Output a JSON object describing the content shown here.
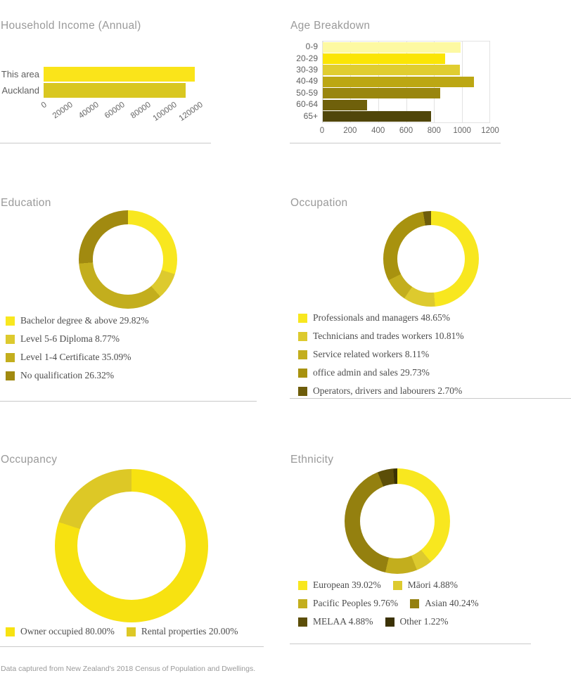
{
  "report": {
    "footer_note": "Data captured from New Zealand's 2018 Census of Population and Dwellings."
  },
  "chart_data": [
    {
      "id": "income",
      "type": "bar",
      "orientation": "horizontal",
      "title": "Household Income (Annual)",
      "categories": [
        "This area",
        "Auckland"
      ],
      "values": [
        116000,
        109000
      ],
      "colors": [
        "#FAE41A",
        "#D9C720"
      ],
      "xmax": 120000,
      "xticks": [
        "0",
        "20000",
        "40000",
        "60000",
        "80000",
        "100000",
        "120000"
      ],
      "tick_rotation": -35,
      "grid": false
    },
    {
      "id": "age",
      "type": "bar",
      "orientation": "horizontal",
      "title": "Age Breakdown",
      "categories": [
        "0-9",
        "20-29",
        "30-39",
        "40-49",
        "50-59",
        "60-64",
        "65+"
      ],
      "values": [
        990,
        880,
        985,
        1090,
        845,
        320,
        780
      ],
      "colors": [
        "#FDF9A2",
        "#FBE505",
        "#E0CD30",
        "#BCA713",
        "#99860E",
        "#6F600B",
        "#50460A"
      ],
      "xmax": 1200,
      "xticks": [
        "0",
        "200",
        "400",
        "600",
        "800",
        "1000",
        "1200"
      ],
      "tick_rotation": 0,
      "grid": true
    },
    {
      "id": "education",
      "type": "donut",
      "title": "Education",
      "segments": [
        {
          "label": "Bachelor degree & above",
          "pct": 29.82,
          "pct_text": "29.82%",
          "color": "#F8E71F"
        },
        {
          "label": "Level 5-6 Diploma",
          "pct": 8.77,
          "pct_text": "8.77%",
          "color": "#DDCA2E"
        },
        {
          "label": "Level 1-4 Certificate",
          "pct": 35.09,
          "pct_text": "35.09%",
          "color": "#C3AE1D"
        },
        {
          "label": "No qualification",
          "pct": 26.32,
          "pct_text": "26.32%",
          "color": "#A18A10"
        }
      ]
    },
    {
      "id": "occupation",
      "type": "donut",
      "title": "Occupation",
      "segments": [
        {
          "label": "Professionals and managers",
          "pct": 48.65,
          "pct_text": "48.65%",
          "color": "#F8E71F"
        },
        {
          "label": "Technicians and trades workers",
          "pct": 10.81,
          "pct_text": "10.81%",
          "color": "#DDCA2E"
        },
        {
          "label": "Service related workers",
          "pct": 8.11,
          "pct_text": "8.11%",
          "color": "#C3AE1D"
        },
        {
          "label": "office admin and sales",
          "pct": 29.73,
          "pct_text": "29.73%",
          "color": "#A8920F"
        },
        {
          "label": "Operators, drivers and labourers",
          "pct": 2.7,
          "pct_text": "2.70%",
          "color": "#6E5D0B"
        }
      ]
    },
    {
      "id": "occupancy",
      "type": "donut",
      "title": "Occupancy",
      "segments": [
        {
          "label": "Owner occupied",
          "pct": 80.0,
          "pct_text": "80.00%",
          "color": "#F7E211"
        },
        {
          "label": "Rental properties",
          "pct": 20.0,
          "pct_text": "20.00%",
          "color": "#DDC826"
        }
      ]
    },
    {
      "id": "ethnicity",
      "type": "donut",
      "title": "Ethnicity",
      "segments": [
        {
          "label": "European",
          "pct": 39.02,
          "pct_text": "39.02%",
          "color": "#F8E71F"
        },
        {
          "label": "Māori",
          "pct": 4.88,
          "pct_text": "4.88%",
          "color": "#DDCA2E"
        },
        {
          "label": "Pacific Peoples",
          "pct": 9.76,
          "pct_text": "9.76%",
          "color": "#C3AE1D"
        },
        {
          "label": "Asian",
          "pct": 40.24,
          "pct_text": "40.24%",
          "color": "#94800F"
        },
        {
          "label": "MELAA",
          "pct": 4.88,
          "pct_text": "4.88%",
          "color": "#5C4E08"
        },
        {
          "label": "Other",
          "pct": 1.22,
          "pct_text": "1.22%",
          "color": "#3B3205"
        }
      ]
    }
  ]
}
